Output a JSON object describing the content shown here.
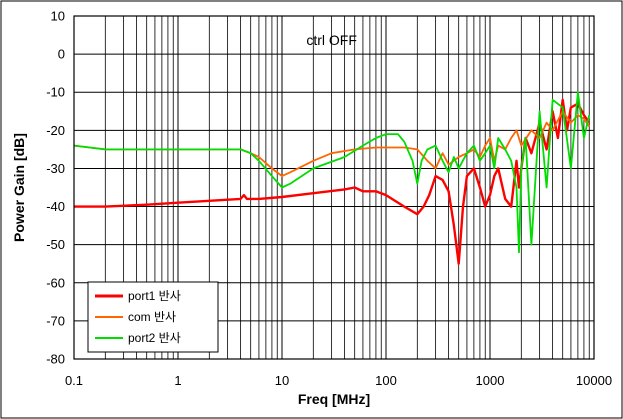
{
  "chart_data": {
    "type": "line",
    "title": "",
    "annotation": "ctrl OFF",
    "xlabel": "Freq [MHz]",
    "ylabel": "Power Gain [dB]",
    "x_scale": "log",
    "xlim": [
      0.1,
      10000
    ],
    "ylim": [
      -80,
      10
    ],
    "x_ticks": [
      0.1,
      1,
      10,
      100,
      1000,
      10000
    ],
    "x_tick_labels": [
      "0.1",
      "1",
      "10",
      "100",
      "1000",
      "10000"
    ],
    "y_ticks": [
      10,
      0,
      -10,
      -20,
      -30,
      -40,
      -50,
      -60,
      -70,
      -80
    ],
    "y_tick_labels": [
      "10",
      "0",
      "-10",
      "-20",
      "-30",
      "-40",
      "-50",
      "-60",
      "-70",
      "-80"
    ],
    "grid": true,
    "legend_position": "bottom-left",
    "series": [
      {
        "name": "port1 반사",
        "color": "#ff0000",
        "x": [
          0.1,
          0.2,
          0.5,
          1,
          2,
          4,
          4.3,
          4.6,
          6,
          10,
          20,
          40,
          50,
          60,
          80,
          100,
          150,
          200,
          230,
          260,
          300,
          350,
          400,
          450,
          500,
          550,
          600,
          700,
          800,
          900,
          1000,
          1100,
          1200,
          1400,
          1600,
          1800,
          1900,
          2000,
          2200,
          2500,
          3000,
          3500,
          4000,
          4500,
          5000,
          5500,
          6000,
          7000,
          8000,
          9000
        ],
        "y": [
          -40,
          -40,
          -39.5,
          -39,
          -38.5,
          -38,
          -37,
          -38,
          -38,
          -37.5,
          -36.5,
          -35.5,
          -35,
          -36,
          -36,
          -37,
          -40,
          -42,
          -40,
          -37,
          -32,
          -33,
          -36,
          -45,
          -55,
          -40,
          -32,
          -30,
          -35,
          -40,
          -37,
          -32,
          -30,
          -38,
          -40,
          -28,
          -35,
          -30,
          -22,
          -26,
          -18,
          -25,
          -15,
          -22,
          -12,
          -20,
          -14,
          -13,
          -16,
          -18
        ]
      },
      {
        "name": "com 반사",
        "color": "#ff6600",
        "x": [
          0.1,
          0.2,
          0.5,
          1,
          2,
          3,
          4,
          5,
          6,
          8,
          10,
          12,
          20,
          30,
          50,
          80,
          100,
          150,
          200,
          250,
          300,
          350,
          400,
          500,
          600,
          700,
          800,
          900,
          1000,
          1100,
          1200,
          1400,
          1600,
          1800,
          2000,
          2500,
          3000,
          3500,
          4000,
          5000,
          6000,
          7000,
          8000,
          9000
        ],
        "y": [
          -24,
          -25,
          -25,
          -25,
          -25,
          -25,
          -25,
          -26,
          -27,
          -30,
          -32,
          -31,
          -28,
          -26,
          -25,
          -24.5,
          -24.5,
          -24.5,
          -25,
          -28,
          -30,
          -26,
          -29,
          -27,
          -26,
          -25,
          -27,
          -24,
          -22,
          -28,
          -24,
          -25,
          -22,
          -20,
          -24,
          -20,
          -22,
          -18,
          -20,
          -15,
          -18,
          -16,
          -17,
          -19
        ]
      },
      {
        "name": "port2 반사",
        "color": "#00dd00",
        "x": [
          0.1,
          0.2,
          0.5,
          1,
          2,
          3,
          4,
          5,
          6,
          8,
          10,
          12,
          20,
          40,
          60,
          80,
          100,
          130,
          150,
          180,
          200,
          220,
          250,
          300,
          350,
          400,
          450,
          500,
          600,
          700,
          800,
          900,
          1000,
          1100,
          1200,
          1400,
          1600,
          1800,
          1900,
          2000,
          2200,
          2500,
          3000,
          3500,
          4000,
          5000,
          6000,
          7000,
          8000,
          9000
        ],
        "y": [
          -24,
          -25,
          -25,
          -25,
          -25,
          -25,
          -25,
          -26,
          -28,
          -32,
          -35,
          -34,
          -30,
          -27,
          -24,
          -22,
          -21,
          -21,
          -23,
          -28,
          -34,
          -28,
          -25,
          -24,
          -28,
          -31,
          -27,
          -30,
          -26,
          -24,
          -28,
          -26,
          -24,
          -30,
          -22,
          -25,
          -28,
          -35,
          -52,
          -30,
          -22,
          -50,
          -15,
          -35,
          -12,
          -14,
          -30,
          -10,
          -22,
          -16
        ]
      }
    ]
  }
}
